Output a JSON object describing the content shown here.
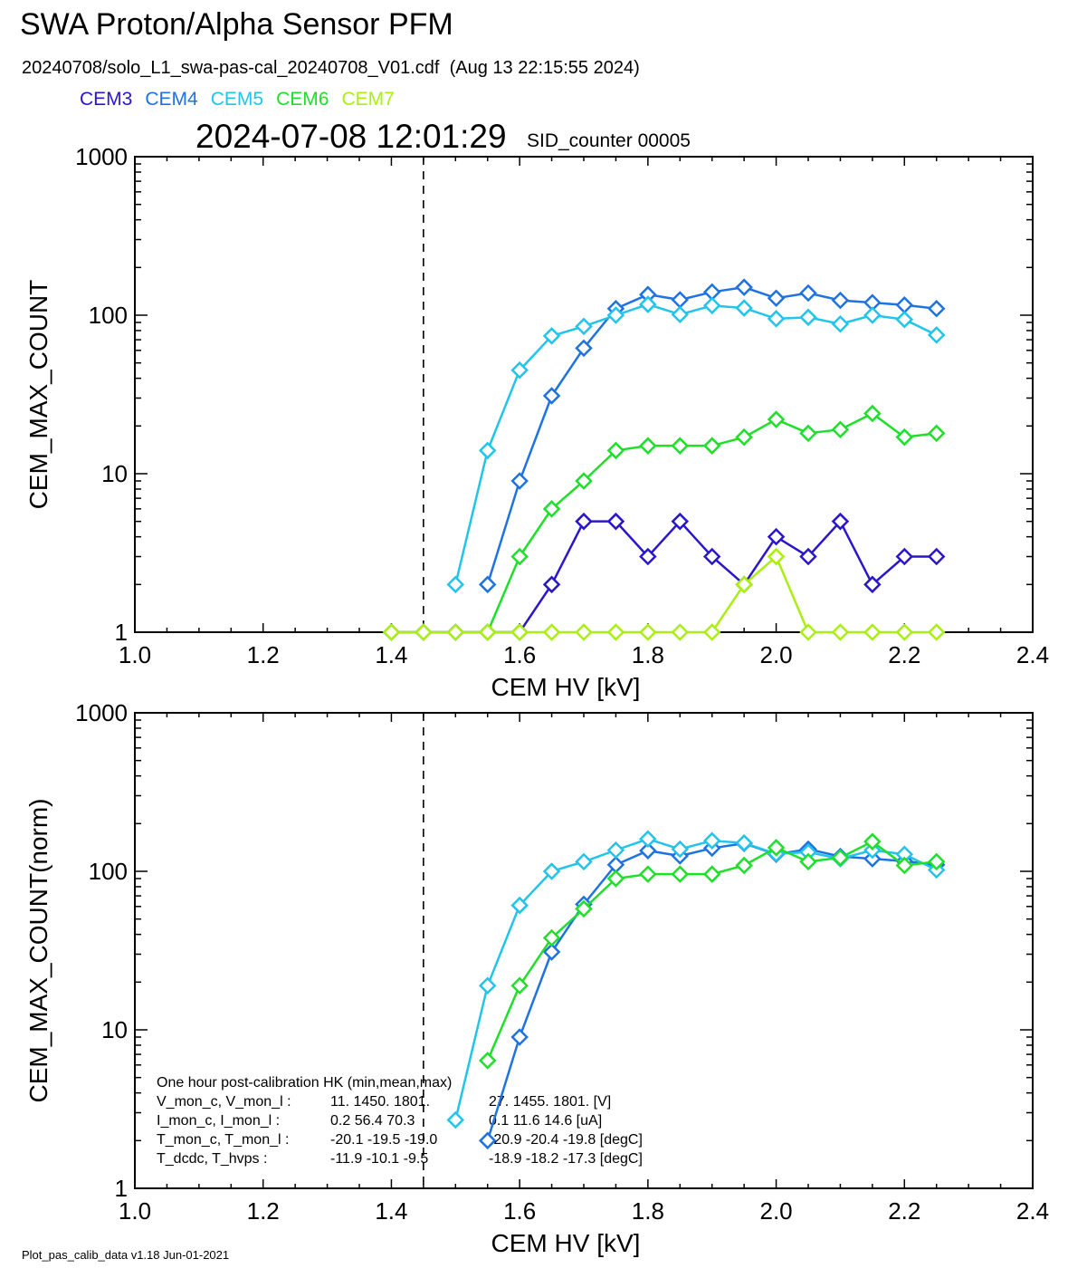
{
  "header": {
    "title": "SWA Proton/Alpha Sensor PFM",
    "subtitle": "20240708/solo_L1_swa-pas-cal_20240708_V01.cdf  (Aug 13 22:15:55 2024)",
    "timestamp": "2024-07-08 12:01:29",
    "sid": "SID_counter 00005"
  },
  "legend": [
    {
      "name": "CEM3",
      "color": "#2a17c9"
    },
    {
      "name": "CEM4",
      "color": "#1f73e0"
    },
    {
      "name": "CEM5",
      "color": "#22c4ec"
    },
    {
      "name": "CEM6",
      "color": "#1ee02a"
    },
    {
      "name": "CEM7",
      "color": "#aaee12"
    }
  ],
  "footer": "Plot_pas_calib_data v1.18 Jun-01-2021",
  "chart_data": [
    {
      "type": "line",
      "xlabel": "CEM HV [kV]",
      "ylabel": "CEM_MAX_COUNT",
      "xlim": [
        1.0,
        2.4
      ],
      "ylim": [
        1,
        1000
      ],
      "yscale": "log",
      "xticks": [
        "1.0",
        "1.2",
        "1.4",
        "1.6",
        "1.8",
        "2.0",
        "2.2",
        "2.4"
      ],
      "yticks": [
        "1",
        "10",
        "100",
        "1000"
      ],
      "vline": 1.45,
      "series": [
        {
          "name": "CEM3",
          "color": "#2a17c9",
          "x": [
            1.4,
            1.45,
            1.5,
            1.55,
            1.6,
            1.65,
            1.7,
            1.75,
            1.8,
            1.85,
            1.9,
            1.95,
            2.0,
            2.05,
            2.1,
            2.15,
            2.2,
            2.25
          ],
          "y": [
            1,
            1,
            1,
            1,
            1,
            2,
            5,
            5,
            3,
            5,
            3,
            2,
            4,
            3,
            5,
            2,
            3,
            3
          ]
        },
        {
          "name": "CEM4",
          "color": "#1f73e0",
          "x": [
            1.55,
            1.6,
            1.65,
            1.7,
            1.75,
            1.8,
            1.85,
            1.9,
            1.95,
            2.0,
            2.05,
            2.1,
            2.15,
            2.2,
            2.25
          ],
          "y": [
            2,
            9,
            31,
            62,
            110,
            135,
            125,
            140,
            150,
            128,
            138,
            124,
            120,
            116,
            110
          ]
        },
        {
          "name": "CEM5",
          "color": "#22c4ec",
          "x": [
            1.5,
            1.55,
            1.6,
            1.65,
            1.7,
            1.75,
            1.8,
            1.85,
            1.9,
            1.95,
            2.0,
            2.05,
            2.1,
            2.15,
            2.2,
            2.25
          ],
          "y": [
            2,
            14,
            45,
            74,
            85,
            100,
            117,
            101,
            115,
            111,
            95,
            97,
            88,
            100,
            94,
            75
          ]
        },
        {
          "name": "CEM6",
          "color": "#1ee02a",
          "x": [
            1.55,
            1.6,
            1.65,
            1.7,
            1.75,
            1.8,
            1.85,
            1.9,
            1.95,
            2.0,
            2.05,
            2.1,
            2.15,
            2.2,
            2.25
          ],
          "y": [
            1,
            3,
            6,
            9,
            14,
            15,
            15,
            15,
            17,
            22,
            18,
            19,
            24,
            17,
            18
          ]
        },
        {
          "name": "CEM7",
          "color": "#aaee12",
          "x": [
            1.4,
            1.45,
            1.5,
            1.55,
            1.6,
            1.65,
            1.7,
            1.75,
            1.8,
            1.85,
            1.9,
            1.95,
            2.0,
            2.05,
            2.1,
            2.15,
            2.2,
            2.25
          ],
          "y": [
            1,
            1,
            1,
            1,
            1,
            1,
            1,
            1,
            1,
            1,
            1,
            2,
            3,
            1,
            1,
            1,
            1,
            1
          ]
        }
      ]
    },
    {
      "type": "line",
      "xlabel": "CEM HV [kV]",
      "ylabel": "CEM_MAX_COUNT(norm)",
      "xlim": [
        1.0,
        2.4
      ],
      "ylim": [
        1,
        1000
      ],
      "yscale": "log",
      "xticks": [
        "1.0",
        "1.2",
        "1.4",
        "1.6",
        "1.8",
        "2.0",
        "2.2",
        "2.4"
      ],
      "yticks": [
        "1",
        "10",
        "100",
        "1000"
      ],
      "vline": 1.45,
      "series": [
        {
          "name": "CEM4",
          "color": "#1f73e0",
          "x": [
            1.55,
            1.6,
            1.65,
            1.7,
            1.75,
            1.8,
            1.85,
            1.9,
            1.95,
            2.0,
            2.05,
            2.1,
            2.15,
            2.2,
            2.25
          ],
          "y": [
            2,
            9,
            31,
            62,
            110,
            135,
            125,
            140,
            150,
            128,
            138,
            124,
            120,
            116,
            110
          ]
        },
        {
          "name": "CEM5",
          "color": "#22c4ec",
          "x": [
            1.5,
            1.55,
            1.6,
            1.65,
            1.7,
            1.75,
            1.8,
            1.85,
            1.9,
            1.95,
            2.0,
            2.05,
            2.1,
            2.15,
            2.2,
            2.25
          ],
          "y": [
            2.7,
            19,
            61,
            100,
            115,
            136,
            160,
            138,
            156,
            151,
            129,
            132,
            120,
            136,
            128,
            102
          ]
        },
        {
          "name": "CEM6",
          "color": "#1ee02a",
          "x": [
            1.55,
            1.6,
            1.65,
            1.7,
            1.75,
            1.8,
            1.85,
            1.9,
            1.95,
            2.0,
            2.05,
            2.1,
            2.15,
            2.2,
            2.25
          ],
          "y": [
            6.4,
            19,
            38,
            58,
            90,
            96,
            96,
            96,
            109,
            141,
            115,
            122,
            154,
            109,
            115
          ]
        }
      ],
      "hk_table": {
        "title": "One hour post-calibration HK (min,mean,max)",
        "rows": [
          {
            "label": "V_mon_c, V_mon_l :",
            "a": "11.  1450.  1801.",
            "b": "27.  1455.  1801. [V]"
          },
          {
            "label": "I_mon_c,  I_mon_l :",
            "a": "0.2   56.4   70.3",
            "b": "0.1   11.6   14.6  [uA]"
          },
          {
            "label": "T_mon_c, T_mon_l :",
            "a": "-20.1  -19.5  -19.0",
            "b": "-20.9  -20.4  -19.8  [degC]"
          },
          {
            "label": "T_dcdc,    T_hvps :",
            "a": "-11.9  -10.1   -9.5",
            "b": "-18.9  -18.2  -17.3  [degC]"
          }
        ]
      }
    }
  ]
}
